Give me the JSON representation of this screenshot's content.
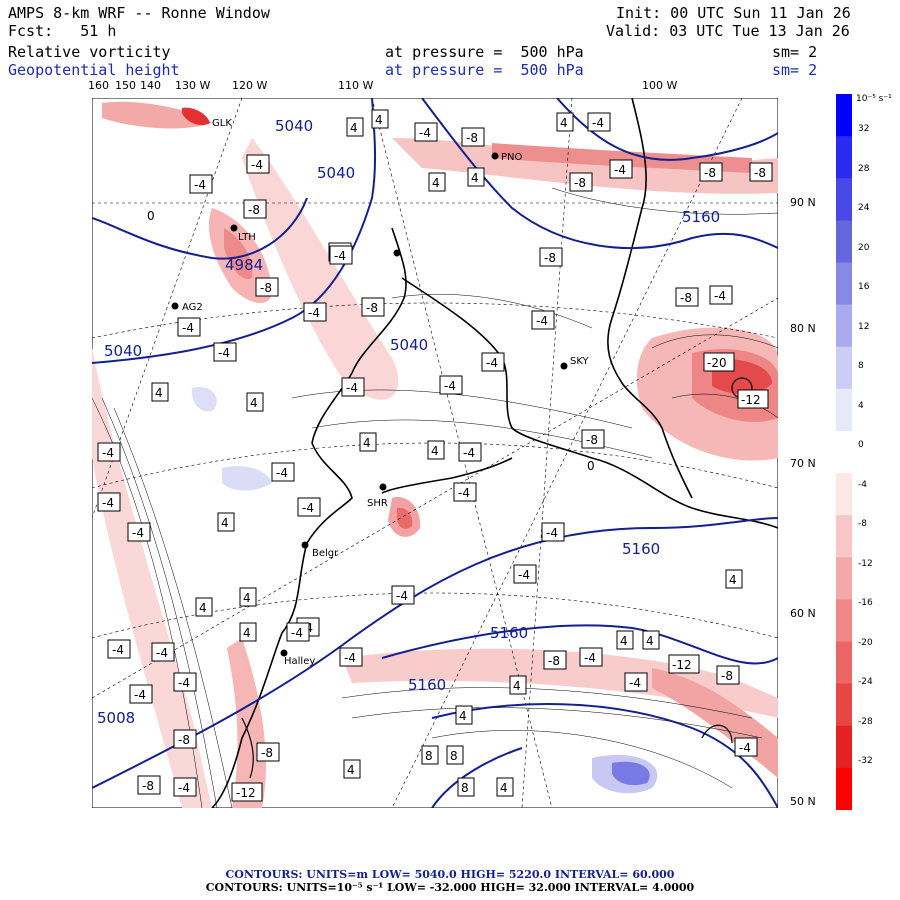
{
  "header": {
    "title": "AMPS 8-km WRF -- Ronne Window",
    "forecast": "Fcst:   51 h",
    "init": "Init: 00 UTC Sun 11 Jan 26",
    "valid": "Valid: 03 UTC Tue 13 Jan 26",
    "field1_name": "Relative vorticity",
    "field1_level": "at pressure =  500 hPa",
    "field1_smooth": "sm= 2",
    "field2_name": "Geopotential height",
    "field2_level": "at pressure =  500 hPa",
    "field2_smooth": "sm= 2"
  },
  "axes": {
    "lon_labels": [
      "160",
      "150",
      "140",
      "130 W",
      "120 W",
      "110 W",
      "100 W"
    ],
    "lat_labels": [
      "90 N",
      "80 N",
      "70 N",
      "60 N",
      "50 N"
    ]
  },
  "colorbar": {
    "unit": "10⁻⁵ s⁻¹",
    "labels": [
      "32",
      "28",
      "24",
      "20",
      "16",
      "12",
      "8",
      "4",
      "0",
      "-4",
      "-8",
      "-12",
      "-16",
      "-20",
      "-24",
      "-28",
      "-32"
    ],
    "colors": [
      "#0000ff",
      "#2a2af0",
      "#4848e6",
      "#6666dd",
      "#8888e6",
      "#aaaaee",
      "#ccccf5",
      "#e8e8fb",
      "#ffffff",
      "#fde6e6",
      "#f8c8c8",
      "#f4a8a8",
      "#f08888",
      "#ec6666",
      "#e84444",
      "#e42222",
      "#ff0000"
    ]
  },
  "map": {
    "stations": [
      "LTH",
      "AG2",
      "PNO",
      "SKY",
      "SHR",
      "Belgr",
      "Halley",
      "GLK"
    ],
    "height_labels": [
      "5040",
      "5040",
      "5040",
      "4984",
      "5040",
      "5160",
      "5160",
      "5160",
      "5160",
      "5008"
    ],
    "vorticity_labels": [
      "-4",
      "-8",
      "4",
      "-12",
      "-20",
      "0",
      "8"
    ]
  },
  "footer": {
    "line1": "CONTOURS:  UNITS=m  LOW=  5040.0         HIGH=  5220.0      INTERVAL=   60.000",
    "line2": "CONTOURS:  UNITS=10⁻⁵ s⁻¹  LOW=  -32.000       HIGH=  32.000       INTERVAL=   4.0000"
  }
}
